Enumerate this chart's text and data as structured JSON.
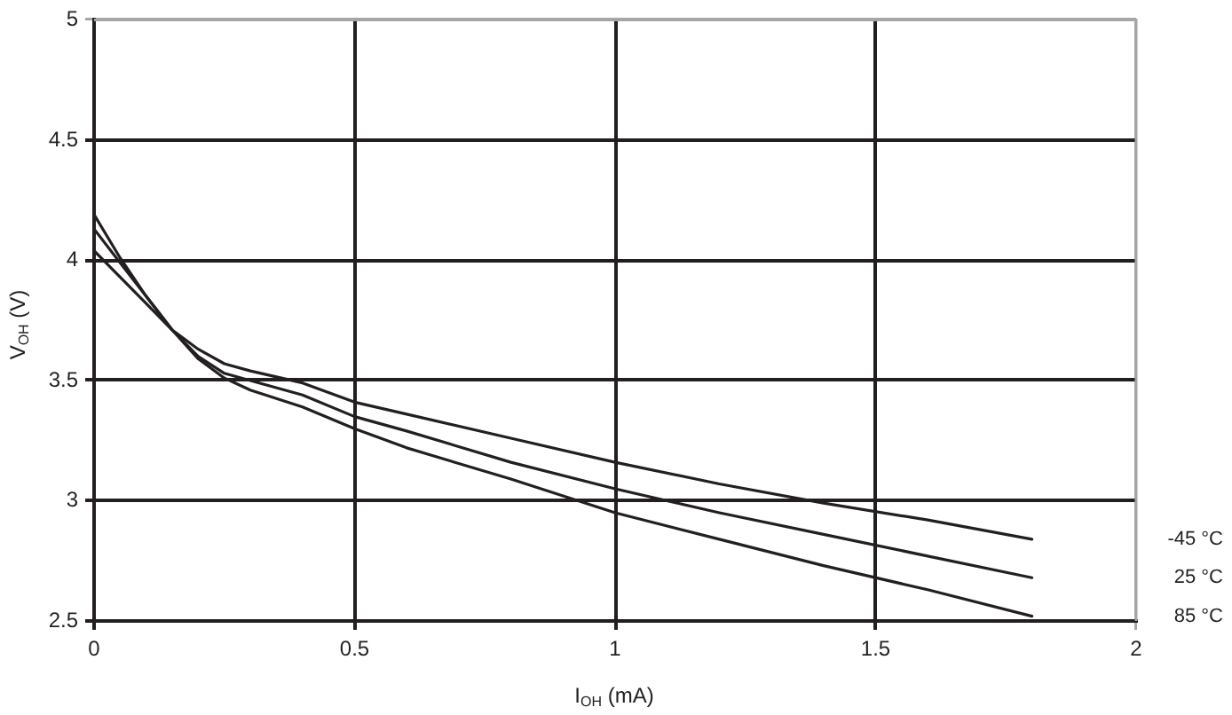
{
  "chart_data": {
    "type": "line",
    "xlabel": "I$_{OH}$ (mA)",
    "ylabel": "V$_{OH}$ (V)",
    "xlim": [
      0,
      2
    ],
    "xticks": [
      0,
      0.5,
      1,
      1.5,
      2
    ],
    "ylim": [
      2.5,
      5
    ],
    "yticks": [
      2.5,
      3,
      3.5,
      4,
      4.5,
      5
    ],
    "grid": true,
    "marker": "none",
    "line_style": "solid",
    "x": [
      0,
      0.05,
      0.1,
      0.15,
      0.2,
      0.25,
      0.3,
      0.4,
      0.5,
      0.6,
      0.8,
      1.0,
      1.2,
      1.4,
      1.6,
      1.8
    ],
    "series": [
      {
        "name": "-45 °C",
        "color": "#231f20",
        "values": [
          4.04,
          3.93,
          3.82,
          3.71,
          3.63,
          3.57,
          3.54,
          3.49,
          3.41,
          3.36,
          3.26,
          3.16,
          3.07,
          2.99,
          2.92,
          2.84
        ]
      },
      {
        "name": "25 °C",
        "color": "#231f20",
        "values": [
          4.13,
          3.99,
          3.85,
          3.71,
          3.6,
          3.53,
          3.5,
          3.44,
          3.35,
          3.29,
          3.16,
          3.05,
          2.95,
          2.86,
          2.77,
          2.68
        ]
      },
      {
        "name": "85 °C",
        "color": "#231f20",
        "values": [
          4.19,
          4.01,
          3.85,
          3.71,
          3.59,
          3.51,
          3.46,
          3.39,
          3.3,
          3.22,
          3.09,
          2.95,
          2.84,
          2.73,
          2.63,
          2.52
        ]
      }
    ]
  }
}
